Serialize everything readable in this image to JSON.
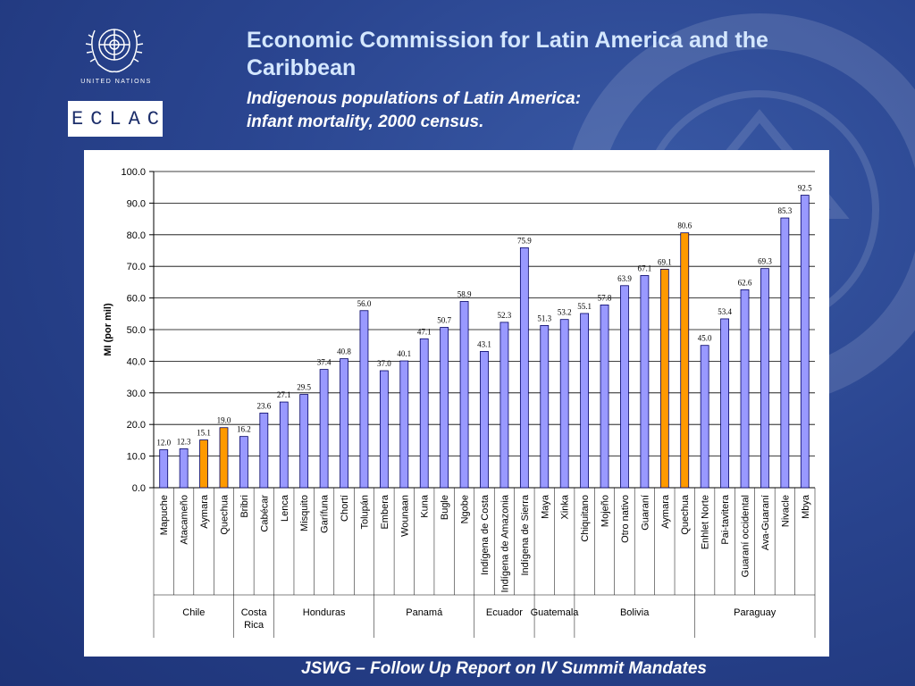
{
  "header": {
    "org_name": "UNITED NATIONS",
    "badge": "ECLAC",
    "title": "Economic Commission for Latin America and the Caribbean",
    "subtitle_line1": "Indigenous populations of Latin America:",
    "subtitle_line2": "infant mortality, 2000 census."
  },
  "footer": {
    "text": "JSWG – Follow Up Report on IV Summit Mandates"
  },
  "colors": {
    "bar": "#9999ff",
    "highlight": "#ff9900",
    "bar_stroke": "#000066"
  },
  "chart_data": {
    "type": "bar",
    "ylabel": "MI (por mil)",
    "ylim": [
      0,
      100
    ],
    "yticks": [
      "0.0",
      "10.0",
      "20.0",
      "30.0",
      "40.0",
      "50.0",
      "60.0",
      "70.0",
      "80.0",
      "90.0",
      "100.0"
    ],
    "grid": true,
    "categories": [
      "Mapuche",
      "Atacameño",
      "Aymara",
      "Quechua",
      "Bribri",
      "Cabécar",
      "Lenca",
      "Misquito",
      "Garífuna",
      "Chortí",
      "Tolupán",
      "Embera",
      "Wounaan",
      "Kuna",
      "Bugle",
      "Ngobe",
      "Indígena de Costa",
      "Indígena de Amazonia",
      "Indígena de Sierra",
      "Maya",
      "Xinka",
      "Chiquitano",
      "Mojeño",
      "Otro nativo",
      "Guaraní",
      "Aymara",
      "Quechua",
      "Enhlet Norte",
      "Pai-tavitera",
      "Guaraní occidental",
      "Ava-Guaraní",
      "Nivacle",
      "Mbya"
    ],
    "values": [
      12.0,
      12.3,
      15.1,
      19.0,
      16.2,
      23.6,
      27.1,
      29.5,
      37.4,
      40.8,
      56.0,
      37.0,
      40.1,
      47.1,
      50.7,
      58.9,
      43.1,
      52.3,
      75.9,
      51.3,
      53.2,
      55.1,
      57.8,
      63.9,
      67.1,
      69.1,
      80.6,
      45.0,
      53.4,
      62.6,
      69.3,
      85.3,
      92.5
    ],
    "value_labels": [
      "12.0",
      "12.3",
      "15.1",
      "19.0",
      "16.2",
      "23.6",
      "27.1",
      "29.5",
      "37.4",
      "40.8",
      "56.0",
      "37.0",
      "40.1",
      "47.1",
      "50.7",
      "58.9",
      "43.1",
      "52.3",
      "75.9",
      "51.3",
      "53.2",
      "55.1",
      "57.8",
      "63.9",
      "67.1",
      "69.1",
      "80.6",
      "45.0",
      "53.4",
      "62.6",
      "69.3",
      "85.3",
      "92.5"
    ],
    "highlighted": [
      2,
      3,
      25,
      26
    ],
    "groups": [
      {
        "name": "Chile",
        "start": 0,
        "count": 4
      },
      {
        "name": "Costa Rica",
        "start": 4,
        "count": 2
      },
      {
        "name": "Honduras",
        "start": 6,
        "count": 5
      },
      {
        "name": "Panamá",
        "start": 11,
        "count": 5
      },
      {
        "name": "Ecuador",
        "start": 16,
        "count": 3
      },
      {
        "name": "Guatemala",
        "start": 19,
        "count": 2
      },
      {
        "name": "Bolivia",
        "start": 21,
        "count": 6
      },
      {
        "name": "Paraguay",
        "start": 27,
        "count": 6
      }
    ]
  }
}
